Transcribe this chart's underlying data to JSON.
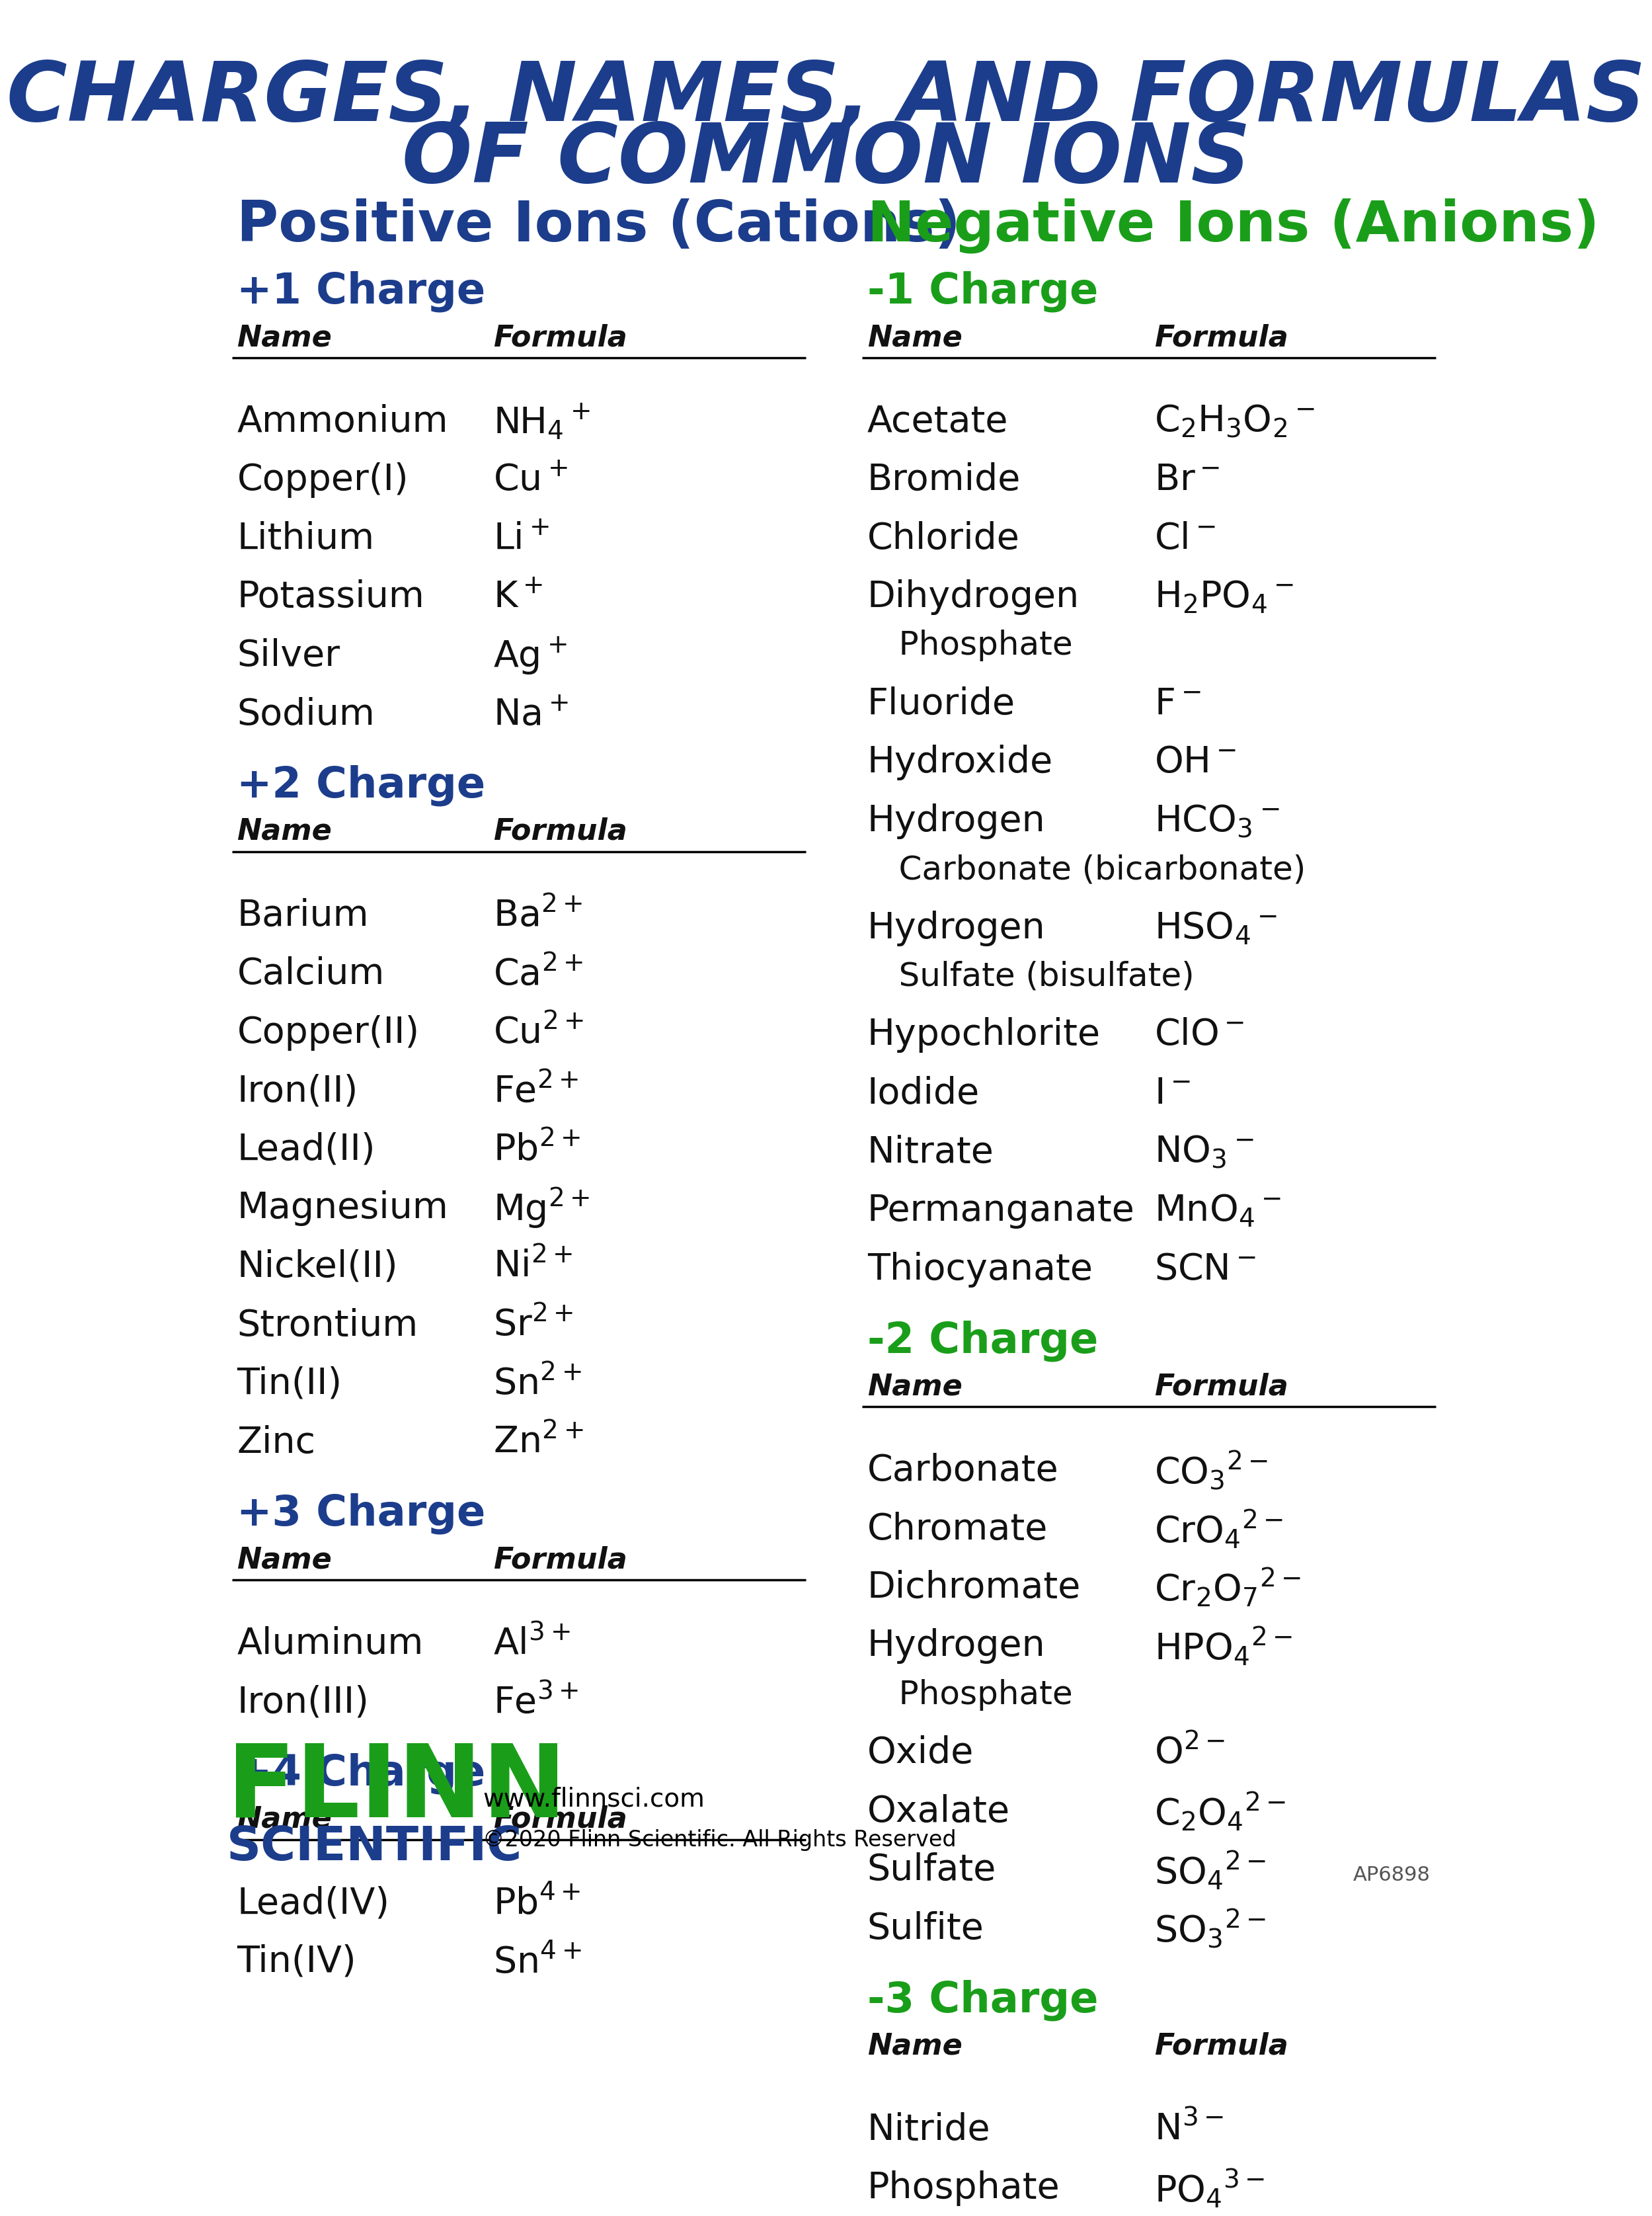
{
  "title_line1": "CHARGES, NAMES, AND FORMULAS",
  "title_line2": "OF COMMON IONS",
  "title_color": "#1c3d8c",
  "bg_color": "#ffffff",
  "cation_header": "Positive Ions (Cations)",
  "anion_header": "Negative Ions (Anions)",
  "header_color_cation": "#1c3d8c",
  "header_color_anion": "#1a9e1a",
  "charge_color_cation": "#1c3d8c",
  "charge_color_anion": "#1a9e1a",
  "name_col_label": "Name",
  "formula_col_label": "Formula",
  "text_color": "#111111",
  "cation_sections": [
    {
      "charge": "+1 Charge",
      "rows": [
        {
          "name": "Ammonium",
          "formula": "NH$_4$$^+$",
          "name2": ""
        },
        {
          "name": "Copper(I)",
          "formula": "Cu$^+$",
          "name2": ""
        },
        {
          "name": "Lithium",
          "formula": "Li$^+$",
          "name2": ""
        },
        {
          "name": "Potassium",
          "formula": "K$^+$",
          "name2": ""
        },
        {
          "name": "Silver",
          "formula": "Ag$^+$",
          "name2": ""
        },
        {
          "name": "Sodium",
          "formula": "Na$^+$",
          "name2": ""
        }
      ]
    },
    {
      "charge": "+2 Charge",
      "rows": [
        {
          "name": "Barium",
          "formula": "Ba$^{2+}$",
          "name2": ""
        },
        {
          "name": "Calcium",
          "formula": "Ca$^{2+}$",
          "name2": ""
        },
        {
          "name": "Copper(II)",
          "formula": "Cu$^{2+}$",
          "name2": ""
        },
        {
          "name": "Iron(II)",
          "formula": "Fe$^{2+}$",
          "name2": ""
        },
        {
          "name": "Lead(II)",
          "formula": "Pb$^{2+}$",
          "name2": ""
        },
        {
          "name": "Magnesium",
          "formula": "Mg$^{2+}$",
          "name2": ""
        },
        {
          "name": "Nickel(II)",
          "formula": "Ni$^{2+}$",
          "name2": ""
        },
        {
          "name": "Strontium",
          "formula": "Sr$^{2+}$",
          "name2": ""
        },
        {
          "name": "Tin(II)",
          "formula": "Sn$^{2+}$",
          "name2": ""
        },
        {
          "name": "Zinc",
          "formula": "Zn$^{2+}$",
          "name2": ""
        }
      ]
    },
    {
      "charge": "+3 Charge",
      "rows": [
        {
          "name": "Aluminum",
          "formula": "Al$^{3+}$",
          "name2": ""
        },
        {
          "name": "Iron(III)",
          "formula": "Fe$^{3+}$",
          "name2": ""
        }
      ]
    },
    {
      "charge": "+4 Charge",
      "rows": [
        {
          "name": "Lead(IV)",
          "formula": "Pb$^{4+}$",
          "name2": ""
        },
        {
          "name": "Tin(IV)",
          "formula": "Sn$^{4+}$",
          "name2": ""
        }
      ]
    }
  ],
  "anion_sections": [
    {
      "charge": "-1 Charge",
      "rows": [
        {
          "name": "Acetate",
          "formula": "C$_2$H$_3$O$_2$$^-$",
          "name2": ""
        },
        {
          "name": "Bromide",
          "formula": "Br$^-$",
          "name2": ""
        },
        {
          "name": "Chloride",
          "formula": "Cl$^-$",
          "name2": ""
        },
        {
          "name": "Dihydrogen",
          "formula": "H$_2$PO$_4$$^-$",
          "name2": "   Phosphate"
        },
        {
          "name": "Fluoride",
          "formula": "F$^-$",
          "name2": ""
        },
        {
          "name": "Hydroxide",
          "formula": "OH$^-$",
          "name2": ""
        },
        {
          "name": "Hydrogen",
          "formula": "HCO$_3$$^-$",
          "name2": "   Carbonate (bicarbonate)"
        },
        {
          "name": "Hydrogen",
          "formula": "HSO$_4$$^-$",
          "name2": "   Sulfate (bisulfate)"
        },
        {
          "name": "Hypochlorite",
          "formula": "ClO$^-$",
          "name2": ""
        },
        {
          "name": "Iodide",
          "formula": "I$^-$",
          "name2": ""
        },
        {
          "name": "Nitrate",
          "formula": "NO$_3$$^-$",
          "name2": ""
        },
        {
          "name": "Permanganate",
          "formula": "MnO$_4$$^-$",
          "name2": ""
        },
        {
          "name": "Thiocyanate",
          "formula": "SCN$^-$",
          "name2": ""
        }
      ]
    },
    {
      "charge": "-2 Charge",
      "rows": [
        {
          "name": "Carbonate",
          "formula": "CO$_3$$^{2-}$",
          "name2": ""
        },
        {
          "name": "Chromate",
          "formula": "CrO$_4$$^{2-}$",
          "name2": ""
        },
        {
          "name": "Dichromate",
          "formula": "Cr$_2$O$_7$$^{2-}$",
          "name2": ""
        },
        {
          "name": "Hydrogen",
          "formula": "HPO$_4$$^{2-}$",
          "name2": "   Phosphate"
        },
        {
          "name": "Oxide",
          "formula": "O$^{2-}$",
          "name2": ""
        },
        {
          "name": "Oxalate",
          "formula": "C$_2$O$_4$$^{2-}$",
          "name2": ""
        },
        {
          "name": "Sulfate",
          "formula": "SO$_4$$^{2-}$",
          "name2": ""
        },
        {
          "name": "Sulfite",
          "formula": "SO$_3$$^{2-}$",
          "name2": ""
        }
      ]
    },
    {
      "charge": "-3 Charge",
      "rows": [
        {
          "name": "Nitride",
          "formula": "N$^{3-}$",
          "name2": ""
        },
        {
          "name": "Phosphate",
          "formula": "PO$_4$$^{3-}$",
          "name2": ""
        }
      ]
    }
  ],
  "flinn_color": "#1a9e1a",
  "scientific_color": "#1c3d8c",
  "website": "www.flinnsci.com",
  "copyright": "©2020 Flinn Scientific. All Rights Reserved",
  "ap_code": "AP6898"
}
